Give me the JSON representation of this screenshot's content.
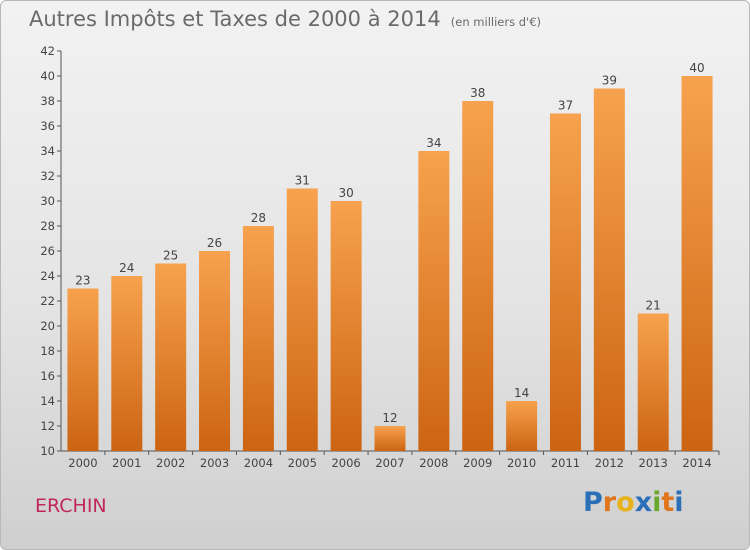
{
  "title": "Autres Impôts et Taxes de 2000 à 2014",
  "unit": "(en milliers d'€)",
  "city": "ERCHIN",
  "brand": {
    "letters": [
      "P",
      "r",
      "o",
      "x",
      "i",
      "t",
      "i"
    ],
    "colors": [
      "#2a6fb8",
      "#e0751c",
      "#e8b21b",
      "#2a6fb8",
      "#6aa82f",
      "#e0751c",
      "#2a6fb8"
    ]
  },
  "colors": {
    "bar_light": "#f7a24e",
    "bar_dark": "#cc6412",
    "axis": "#555555",
    "text": "#444444",
    "title": "#6a6a6a",
    "city": "#c0285a"
  },
  "chart_data": {
    "type": "bar",
    "categories": [
      "2000",
      "2001",
      "2002",
      "2003",
      "2004",
      "2005",
      "2006",
      "2007",
      "2008",
      "2009",
      "2010",
      "2011",
      "2012",
      "2013",
      "2014"
    ],
    "values": [
      23,
      24,
      25,
      26,
      28,
      31,
      30,
      12,
      34,
      38,
      14,
      37,
      39,
      21,
      40
    ],
    "title": "Autres Impôts et Taxes de 2000 à 2014",
    "xlabel": "",
    "ylabel": "",
    "ylim": [
      10,
      42
    ],
    "yticks": [
      10,
      12,
      14,
      16,
      18,
      20,
      22,
      24,
      26,
      28,
      30,
      32,
      34,
      36,
      38,
      40,
      42
    ],
    "grid": false,
    "data_labels": true
  }
}
